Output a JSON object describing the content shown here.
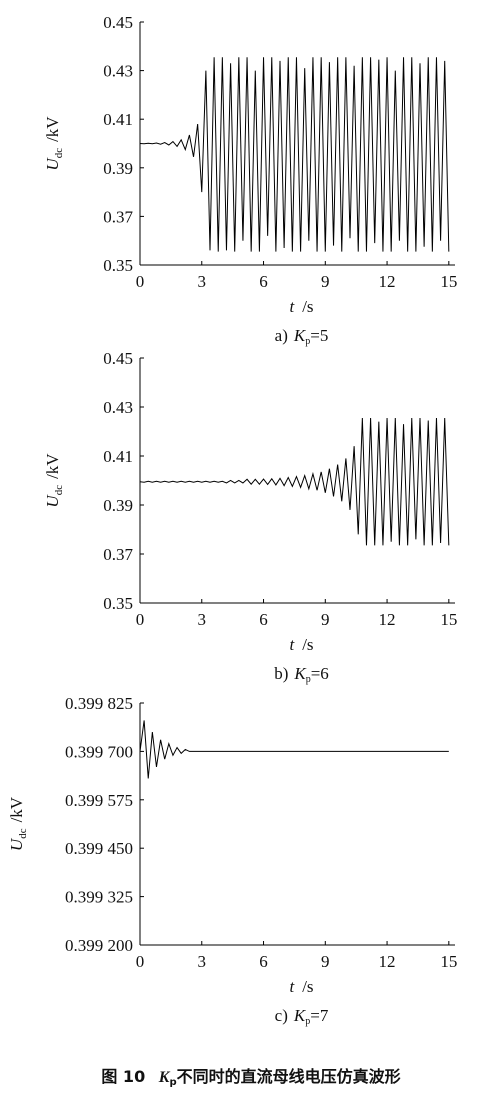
{
  "chart_data": [
    {
      "type": "line",
      "color": "#000000",
      "ylabel": {
        "main": "U",
        "sub": "dc",
        "unit": "/kV"
      },
      "xlabel": {
        "main": "t",
        "unit": "/s"
      },
      "caption": {
        "label": "a)",
        "var": "K",
        "sub": "p",
        "rest": "=5"
      },
      "xlim": [
        0,
        15.3
      ],
      "xticks": [
        0,
        3,
        6,
        9,
        12,
        15
      ],
      "ylim": [
        0.35,
        0.45
      ],
      "yticks": [
        0.35,
        0.37,
        0.39,
        0.41,
        0.43,
        0.45
      ],
      "x": [
        0,
        0.2,
        0.4,
        0.6,
        0.8,
        1,
        1.2,
        1.4,
        1.6,
        1.8,
        2,
        2.2,
        2.4,
        2.6,
        2.8,
        3,
        3.2,
        3.4,
        3.6,
        3.8,
        4,
        4.2,
        4.4,
        4.6,
        4.8,
        5,
        5.2,
        5.4,
        5.6,
        5.8,
        6,
        6.2,
        6.4,
        6.6,
        6.8,
        7,
        7.2,
        7.4,
        7.6,
        7.8,
        8,
        8.2,
        8.4,
        8.6,
        8.8,
        9,
        9.2,
        9.4,
        9.6,
        9.8,
        10,
        10.2,
        10.4,
        10.6,
        10.8,
        11,
        11.2,
        11.4,
        11.6,
        11.8,
        12,
        12.2,
        12.4,
        12.6,
        12.8,
        13,
        13.2,
        13.4,
        13.6,
        13.8,
        14,
        14.2,
        14.4,
        14.6,
        14.8,
        15
      ],
      "values": [
        0.4,
        0.3999,
        0.4001,
        0.3999,
        0.4002,
        0.3997,
        0.4004,
        0.3994,
        0.4008,
        0.3988,
        0.4015,
        0.3975,
        0.4035,
        0.3945,
        0.408,
        0.38,
        0.43,
        0.356,
        0.4355,
        0.3555,
        0.4355,
        0.356,
        0.433,
        0.3555,
        0.4355,
        0.36,
        0.4355,
        0.3555,
        0.43,
        0.3555,
        0.4355,
        0.362,
        0.4355,
        0.3555,
        0.434,
        0.357,
        0.4355,
        0.3555,
        0.4355,
        0.3555,
        0.431,
        0.36,
        0.4355,
        0.3555,
        0.4355,
        0.3555,
        0.4335,
        0.358,
        0.4355,
        0.3555,
        0.4355,
        0.361,
        0.432,
        0.3555,
        0.4355,
        0.3555,
        0.4355,
        0.359,
        0.4345,
        0.3555,
        0.4355,
        0.3555,
        0.43,
        0.36,
        0.4355,
        0.3555,
        0.4355,
        0.3555,
        0.433,
        0.3575,
        0.4355,
        0.3555,
        0.4355,
        0.36,
        0.434,
        0.3555
      ]
    },
    {
      "type": "line",
      "color": "#000000",
      "ylabel": {
        "main": "U",
        "sub": "dc",
        "unit": "/kV"
      },
      "xlabel": {
        "main": "t",
        "unit": "/s"
      },
      "caption": {
        "label": "b)",
        "var": "K",
        "sub": "p",
        "rest": "=6"
      },
      "xlim": [
        0,
        15.3
      ],
      "xticks": [
        0,
        3,
        6,
        9,
        12,
        15
      ],
      "ylim": [
        0.35,
        0.45
      ],
      "yticks": [
        0.35,
        0.37,
        0.39,
        0.41,
        0.43,
        0.45
      ],
      "x": [
        0,
        0.2,
        0.4,
        0.6,
        0.8,
        1,
        1.2,
        1.4,
        1.6,
        1.8,
        2,
        2.2,
        2.4,
        2.6,
        2.8,
        3,
        3.2,
        3.4,
        3.6,
        3.8,
        4,
        4.2,
        4.4,
        4.6,
        4.8,
        5,
        5.2,
        5.4,
        5.6,
        5.8,
        6,
        6.2,
        6.4,
        6.6,
        6.8,
        7,
        7.2,
        7.4,
        7.6,
        7.8,
        8,
        8.2,
        8.4,
        8.6,
        8.8,
        9,
        9.2,
        9.4,
        9.6,
        9.8,
        10,
        10.2,
        10.4,
        10.6,
        10.8,
        11,
        11.2,
        11.4,
        11.6,
        11.8,
        12,
        12.2,
        12.4,
        12.6,
        12.8,
        13,
        13.2,
        13.4,
        13.6,
        13.8,
        14,
        14.2,
        14.4,
        14.6,
        14.8,
        15
      ],
      "values": [
        0.3995,
        0.3993,
        0.3997,
        0.3993,
        0.3997,
        0.3993,
        0.3997,
        0.3993,
        0.3997,
        0.3993,
        0.3997,
        0.3993,
        0.3997,
        0.3993,
        0.3997,
        0.3993,
        0.3997,
        0.3993,
        0.3997,
        0.3993,
        0.3997,
        0.399,
        0.4,
        0.399,
        0.4,
        0.399,
        0.4005,
        0.3985,
        0.4005,
        0.3985,
        0.4006,
        0.3984,
        0.4007,
        0.3982,
        0.4009,
        0.3979,
        0.4012,
        0.3976,
        0.4016,
        0.3972,
        0.402,
        0.3966,
        0.4027,
        0.396,
        0.4035,
        0.395,
        0.4048,
        0.3935,
        0.4065,
        0.3915,
        0.409,
        0.388,
        0.414,
        0.378,
        0.4255,
        0.3735,
        0.4255,
        0.3735,
        0.424,
        0.3735,
        0.4255,
        0.375,
        0.4255,
        0.3735,
        0.423,
        0.3735,
        0.4255,
        0.376,
        0.4255,
        0.3735,
        0.4245,
        0.3735,
        0.4255,
        0.3745,
        0.4255,
        0.3735
      ]
    },
    {
      "type": "line",
      "color": "#000000",
      "ylabel": {
        "main": "U",
        "sub": "dc",
        "unit": "/kV"
      },
      "xlabel": {
        "main": "t",
        "unit": "/s"
      },
      "caption": {
        "label": "c)",
        "var": "K",
        "sub": "p",
        "rest": "=7"
      },
      "xlim": [
        0,
        15.3
      ],
      "xticks": [
        0,
        3,
        6,
        9,
        12,
        15
      ],
      "ylim": [
        0.3992,
        0.399825
      ],
      "yticks": [
        {
          "value": 0.3992,
          "label": "0.399 200"
        },
        {
          "value": 0.399325,
          "label": "0.399 325"
        },
        {
          "value": 0.39945,
          "label": "0.399 450"
        },
        {
          "value": 0.399575,
          "label": "0.399 575"
        },
        {
          "value": 0.3997,
          "label": "0.399 700"
        },
        {
          "value": 0.399825,
          "label": "0.399 825"
        }
      ],
      "x": [
        0,
        0.2,
        0.4,
        0.6,
        0.8,
        1,
        1.2,
        1.4,
        1.6,
        1.8,
        2,
        2.2,
        2.4,
        2.6,
        2.8,
        3,
        3.2,
        3.4,
        3.6,
        3.8,
        4,
        4.2,
        4.4,
        4.6,
        4.8,
        5,
        5.2,
        5.4,
        5.6,
        5.8,
        6,
        6.2,
        6.4,
        6.6,
        6.8,
        7,
        7.2,
        7.4,
        7.6,
        7.8,
        8,
        8.2,
        8.4,
        8.6,
        8.8,
        9,
        9.2,
        9.4,
        9.6,
        9.8,
        10,
        10.2,
        10.4,
        10.6,
        10.8,
        11,
        11.2,
        11.4,
        11.6,
        11.8,
        12,
        12.2,
        12.4,
        12.6,
        12.8,
        13,
        13.2,
        13.4,
        13.6,
        13.8,
        14,
        14.2,
        14.4,
        14.6,
        14.8,
        15
      ],
      "values": [
        0.3997,
        0.39978,
        0.39963,
        0.39975,
        0.39966,
        0.39973,
        0.39968,
        0.39972,
        0.39969,
        0.39971,
        0.399695,
        0.399705,
        0.3997,
        0.3997,
        0.3997,
        0.3997,
        0.3997,
        0.3997,
        0.3997,
        0.3997,
        0.3997,
        0.3997,
        0.3997,
        0.3997,
        0.3997,
        0.3997,
        0.3997,
        0.3997,
        0.3997,
        0.3997,
        0.3997,
        0.3997,
        0.3997,
        0.3997,
        0.3997,
        0.3997,
        0.3997,
        0.3997,
        0.3997,
        0.3997,
        0.3997,
        0.3997,
        0.3997,
        0.3997,
        0.3997,
        0.3997,
        0.3997,
        0.3997,
        0.3997,
        0.3997,
        0.3997,
        0.3997,
        0.3997,
        0.3997,
        0.3997,
        0.3997,
        0.3997,
        0.3997,
        0.3997,
        0.3997,
        0.3997,
        0.3997,
        0.3997,
        0.3997,
        0.3997,
        0.3997,
        0.3997,
        0.3997,
        0.3997,
        0.3997,
        0.3997,
        0.3997,
        0.3997,
        0.3997,
        0.3997,
        0.3997
      ]
    }
  ],
  "figure_caption": {
    "number": "图 10",
    "var": "K",
    "sub": "p",
    "text": "不同时的直流母线电压仿真波形"
  }
}
